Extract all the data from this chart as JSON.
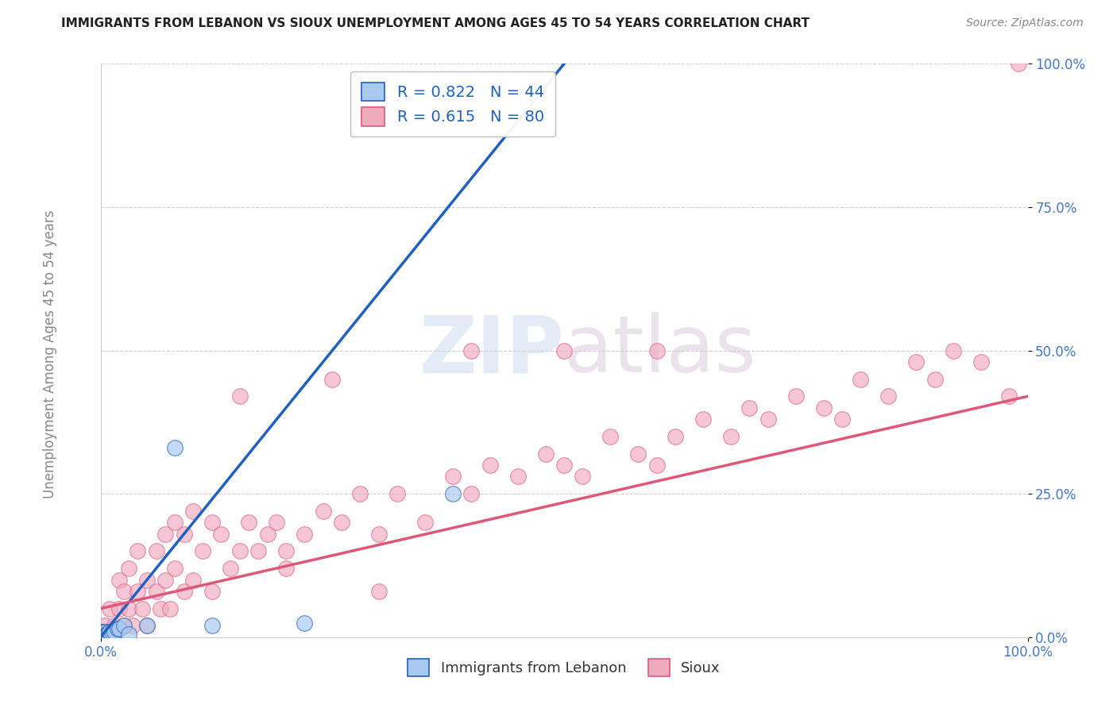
{
  "title": "IMMIGRANTS FROM LEBANON VS SIOUX UNEMPLOYMENT AMONG AGES 45 TO 54 YEARS CORRELATION CHART",
  "source": "Source: ZipAtlas.com",
  "ylabel": "Unemployment Among Ages 45 to 54 years",
  "xlabel_lebanon": "Immigrants from Lebanon",
  "xlabel_sioux": "Sioux",
  "xlim": [
    0.0,
    1.0
  ],
  "ylim": [
    0.0,
    1.0
  ],
  "ytick_labels": [
    "0.0%",
    "25.0%",
    "50.0%",
    "75.0%",
    "100.0%"
  ],
  "ytick_vals": [
    0.0,
    0.25,
    0.5,
    0.75,
    1.0
  ],
  "lebanon_R": 0.822,
  "lebanon_N": 44,
  "sioux_R": 0.615,
  "sioux_N": 80,
  "lebanon_color": "#aac9f0",
  "sioux_color": "#f0aac0",
  "line_blue": "#2060c0",
  "line_pink": "#e05878",
  "watermark_zip": "ZIP",
  "watermark_atlas": "atlas",
  "background_color": "#ffffff",
  "lebanon_scatter_x": [
    0.0,
    0.0,
    0.0,
    0.0,
    0.0,
    0.0,
    0.0,
    0.0,
    0.0,
    0.0,
    0.001,
    0.001,
    0.001,
    0.001,
    0.001,
    0.002,
    0.002,
    0.002,
    0.002,
    0.003,
    0.003,
    0.003,
    0.004,
    0.004,
    0.005,
    0.005,
    0.005,
    0.006,
    0.006,
    0.007,
    0.008,
    0.009,
    0.01,
    0.012,
    0.015,
    0.018,
    0.02,
    0.025,
    0.03,
    0.05,
    0.08,
    0.12,
    0.22,
    0.38
  ],
  "lebanon_scatter_y": [
    0.0,
    0.0,
    0.0,
    0.0,
    0.0,
    0.0,
    0.0,
    0.005,
    0.005,
    0.01,
    0.0,
    0.0,
    0.0,
    0.005,
    0.01,
    0.0,
    0.0,
    0.005,
    0.01,
    0.0,
    0.005,
    0.01,
    0.0,
    0.005,
    0.0,
    0.005,
    0.01,
    0.0,
    0.005,
    0.005,
    0.005,
    0.01,
    0.01,
    0.01,
    0.01,
    0.015,
    0.015,
    0.02,
    0.005,
    0.02,
    0.33,
    0.02,
    0.025,
    0.25
  ],
  "sioux_scatter_x": [
    0.0,
    0.005,
    0.01,
    0.01,
    0.015,
    0.02,
    0.02,
    0.025,
    0.025,
    0.03,
    0.03,
    0.035,
    0.04,
    0.04,
    0.045,
    0.05,
    0.05,
    0.06,
    0.06,
    0.065,
    0.07,
    0.07,
    0.075,
    0.08,
    0.08,
    0.09,
    0.09,
    0.1,
    0.1,
    0.11,
    0.12,
    0.12,
    0.13,
    0.14,
    0.15,
    0.16,
    0.17,
    0.18,
    0.19,
    0.2,
    0.22,
    0.24,
    0.26,
    0.28,
    0.3,
    0.32,
    0.35,
    0.38,
    0.4,
    0.42,
    0.45,
    0.48,
    0.5,
    0.52,
    0.55,
    0.58,
    0.6,
    0.62,
    0.65,
    0.68,
    0.7,
    0.72,
    0.75,
    0.78,
    0.8,
    0.82,
    0.85,
    0.88,
    0.9,
    0.92,
    0.95,
    0.98,
    0.15,
    0.2,
    0.25,
    0.3,
    0.4,
    0.5,
    0.6,
    0.99
  ],
  "sioux_scatter_y": [
    0.0,
    0.02,
    0.0,
    0.05,
    0.02,
    0.05,
    0.1,
    0.02,
    0.08,
    0.05,
    0.12,
    0.02,
    0.08,
    0.15,
    0.05,
    0.02,
    0.1,
    0.08,
    0.15,
    0.05,
    0.1,
    0.18,
    0.05,
    0.12,
    0.2,
    0.08,
    0.18,
    0.1,
    0.22,
    0.15,
    0.08,
    0.2,
    0.18,
    0.12,
    0.15,
    0.2,
    0.15,
    0.18,
    0.2,
    0.12,
    0.18,
    0.22,
    0.2,
    0.25,
    0.18,
    0.25,
    0.2,
    0.28,
    0.25,
    0.3,
    0.28,
    0.32,
    0.3,
    0.28,
    0.35,
    0.32,
    0.3,
    0.35,
    0.38,
    0.35,
    0.4,
    0.38,
    0.42,
    0.4,
    0.38,
    0.45,
    0.42,
    0.48,
    0.45,
    0.5,
    0.48,
    0.42,
    0.42,
    0.15,
    0.45,
    0.08,
    0.5,
    0.5,
    0.5,
    1.0
  ],
  "lebanon_line_x0": 0.0,
  "lebanon_line_y0": 0.0,
  "lebanon_line_x1": 0.5,
  "lebanon_line_y1": 1.0,
  "sioux_line_x0": 0.0,
  "sioux_line_y0": 0.05,
  "sioux_line_x1": 1.0,
  "sioux_line_y1": 0.42
}
